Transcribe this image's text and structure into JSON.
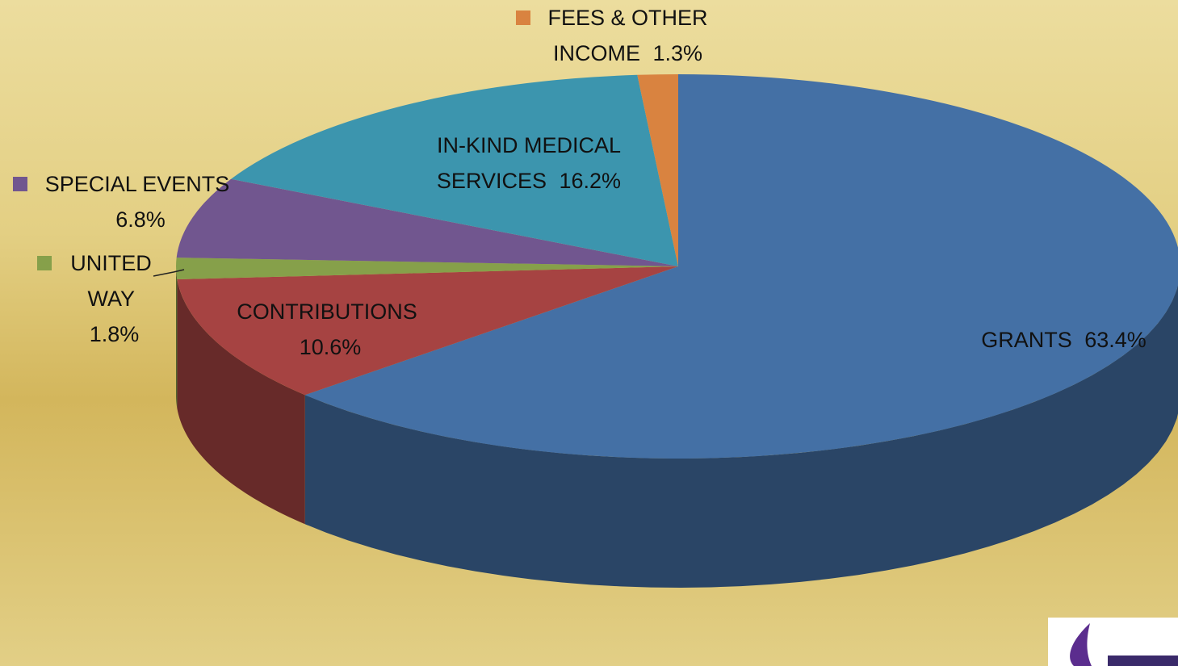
{
  "chart_data": {
    "type": "pie3d",
    "categories": [
      "GRANTS",
      "CONTRIBUTIONS",
      "UNITED WAY",
      "SPECIAL EVENTS",
      "IN-KIND MEDICAL SERVICES",
      "FEES & OTHER INCOME"
    ],
    "values": [
      63.4,
      10.6,
      1.8,
      6.8,
      16.2,
      1.3
    ],
    "value_labels": [
      "63.4%",
      "10.6%",
      "1.8%",
      "6.8%",
      "16.2%",
      "1.3%"
    ],
    "colors": [
      "#4470a5",
      "#a64342",
      "#86a04a",
      "#71568f",
      "#3c95ae",
      "#d98340"
    ]
  }
}
